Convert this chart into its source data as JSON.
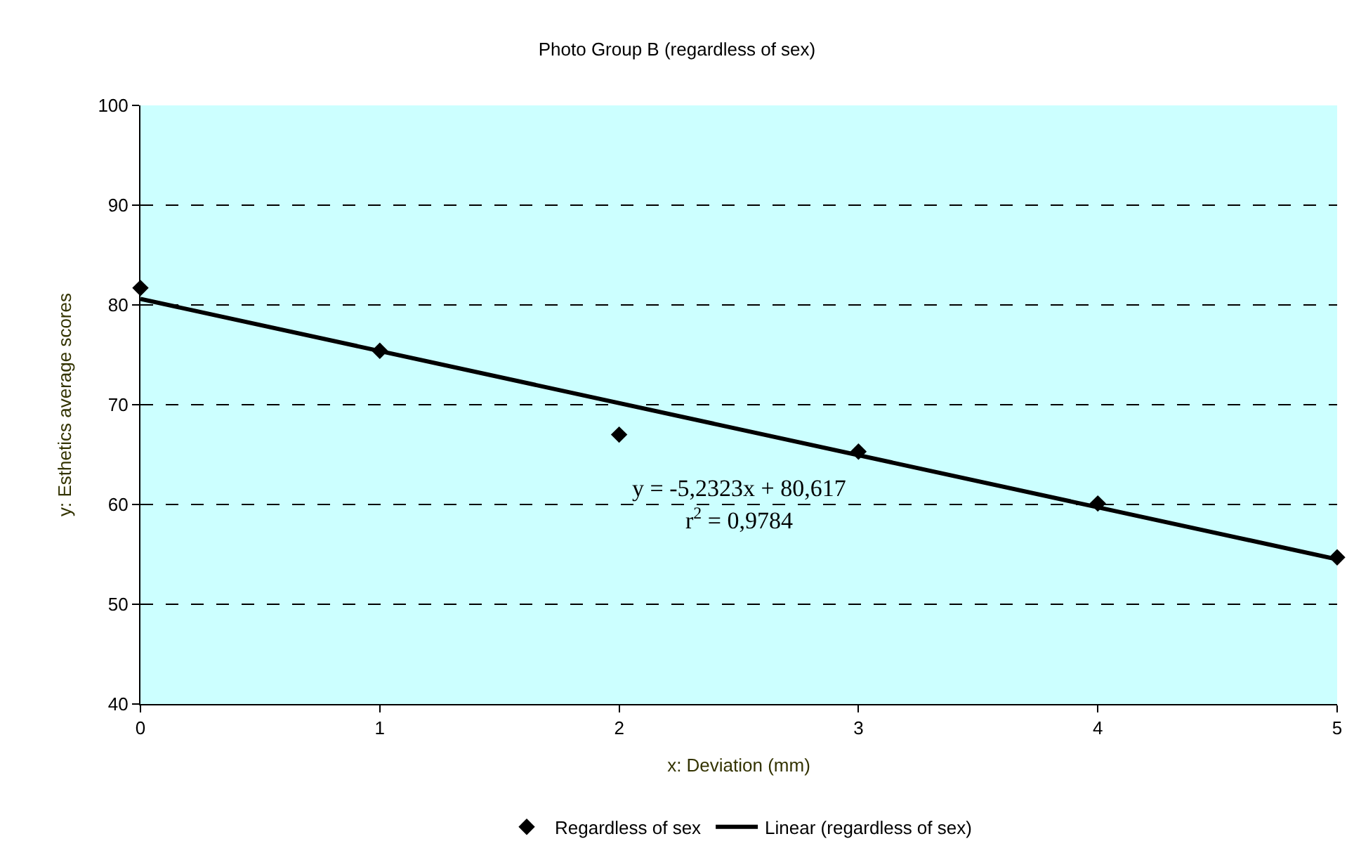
{
  "chart_data": {
    "type": "scatter",
    "title": "Photo Group B (regardless of sex)",
    "xlabel": "x: Deviation (mm)",
    "ylabel": "y: Esthetics average scores",
    "series": [
      {
        "name": "Regardless of sex",
        "color": "#000000",
        "marker": "diamond",
        "x": [
          0,
          1,
          2,
          3,
          4,
          5
        ],
        "values": [
          81.7,
          75.4,
          67.0,
          65.3,
          60.1,
          54.7
        ]
      },
      {
        "name": "Linear (regardless of sex)",
        "type": "line",
        "color": "#000000",
        "line_style": "solid",
        "x": [
          0,
          5
        ],
        "values": [
          80.6,
          54.5
        ]
      }
    ],
    "annotations": [
      "y = -5,2323x + 80,617",
      "r$^{2}$ = 0,9784"
    ],
    "xlim": [
      0,
      5
    ],
    "xticks": [
      0,
      1,
      2,
      3,
      4,
      5
    ],
    "ylim": [
      40,
      100
    ],
    "yticks": [
      40,
      50,
      60,
      70,
      80,
      90,
      100
    ],
    "grid": "y",
    "legend": "bottom"
  }
}
